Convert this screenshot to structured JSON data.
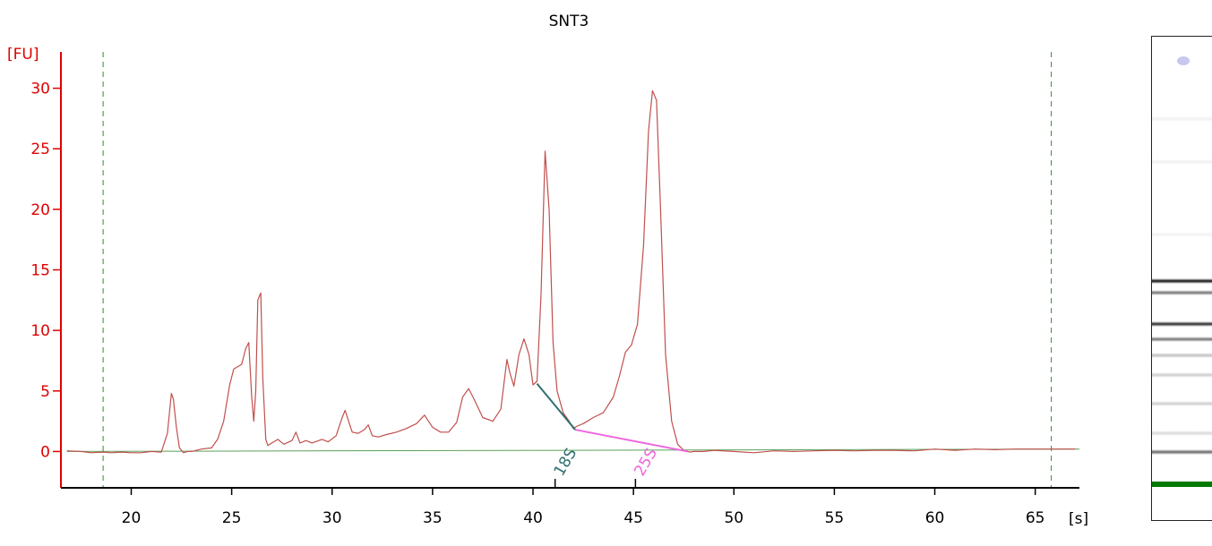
{
  "chart_data": {
    "type": "line",
    "title": "SNT3",
    "ylabel": "[FU]",
    "xlabel": "[s]",
    "xlim": [
      16.5,
      67.2
    ],
    "ylim": [
      -3.0,
      33.0
    ],
    "xticks": [
      20,
      25,
      30,
      35,
      40,
      45,
      50,
      55,
      60,
      65
    ],
    "yticks": [
      0,
      5,
      10,
      15,
      20,
      25,
      30
    ],
    "grid": false,
    "colors": {
      "trace": "#c0504d",
      "baseline": "#5aa05a",
      "axis_y": "#e00000",
      "marker_lines": "#2e8b2e",
      "peak_18S": "#2f6f6f",
      "peak_25S": "#ee66dd",
      "gel_marker": "#007a00"
    },
    "marker_lines_x": [
      18.6,
      65.8
    ],
    "series": [
      {
        "x": [
          16.8,
          17.5,
          18.0,
          18.6,
          19.0,
          19.5,
          20.0,
          20.5,
          21.0,
          21.5,
          21.8,
          22.0,
          22.1,
          22.25,
          22.4,
          22.6,
          22.8,
          23.0,
          23.5,
          24.0,
          24.3,
          24.6,
          24.9,
          25.1,
          25.3,
          25.5,
          25.7,
          25.85,
          26.0,
          26.1,
          26.2,
          26.3,
          26.45,
          26.55,
          26.7,
          26.8,
          27.0,
          27.3,
          27.6,
          28.0,
          28.2,
          28.4,
          28.7,
          29.0,
          29.5,
          29.8,
          30.2,
          30.5,
          30.65,
          30.8,
          31.0,
          31.3,
          31.6,
          31.8,
          32.0,
          32.3,
          32.7,
          33.2,
          33.7,
          34.2,
          34.6,
          35.0,
          35.4,
          35.8,
          36.2,
          36.5,
          36.8,
          37.1,
          37.5,
          38.0,
          38.4,
          38.7,
          38.85,
          39.05,
          39.3,
          39.55,
          39.8,
          40.0,
          40.2,
          40.4,
          40.6,
          40.8,
          41.0,
          41.2,
          41.5,
          41.8,
          42.0,
          42.2,
          42.5,
          43.0,
          43.5,
          44.0,
          44.3,
          44.6,
          44.9,
          45.2,
          45.5,
          45.75,
          45.95,
          46.15,
          46.35,
          46.6,
          46.9,
          47.2,
          47.5,
          47.8,
          48.0,
          48.5,
          49.0,
          50.0,
          51.0,
          52.0,
          53.0,
          54.0,
          55.0,
          56.0,
          57.0,
          58.0,
          59.0,
          60.0,
          61.0,
          62.0,
          63.0,
          64.0,
          65.0,
          66.0,
          67.0
        ],
        "values": [
          0.05,
          0.0,
          -0.1,
          -0.05,
          -0.1,
          -0.05,
          -0.1,
          -0.1,
          0.0,
          -0.05,
          1.5,
          4.8,
          4.3,
          2.0,
          0.3,
          -0.1,
          0.0,
          0.0,
          0.2,
          0.3,
          1.0,
          2.5,
          5.5,
          6.8,
          7.0,
          7.2,
          8.5,
          9.0,
          4.5,
          2.5,
          5.0,
          12.5,
          13.1,
          6.0,
          1.0,
          0.5,
          0.7,
          1.0,
          0.6,
          0.9,
          1.6,
          0.7,
          0.9,
          0.7,
          1.0,
          0.8,
          1.3,
          2.8,
          3.4,
          2.6,
          1.6,
          1.5,
          1.8,
          2.2,
          1.3,
          1.2,
          1.4,
          1.6,
          1.9,
          2.3,
          3.0,
          2.0,
          1.6,
          1.6,
          2.4,
          4.5,
          5.2,
          4.2,
          2.8,
          2.5,
          3.5,
          7.6,
          6.5,
          5.4,
          8.0,
          9.3,
          8.0,
          5.5,
          5.8,
          13.0,
          24.8,
          20.0,
          9.0,
          5.0,
          3.2,
          2.5,
          1.9,
          2.1,
          2.3,
          2.8,
          3.2,
          4.5,
          6.2,
          8.2,
          8.8,
          10.5,
          17.0,
          26.5,
          29.8,
          29.0,
          20.0,
          8.0,
          2.5,
          0.6,
          0.1,
          -0.05,
          0.0,
          0.0,
          0.1,
          0.0,
          -0.1,
          0.05,
          0.0,
          0.05,
          0.1,
          0.05,
          0.1,
          0.1,
          0.05,
          0.2,
          0.1,
          0.2,
          0.15,
          0.2,
          0.2,
          0.2,
          0.2
        ]
      }
    ],
    "baseline": {
      "x": [
        16.8,
        67.2
      ],
      "y": [
        0.0,
        0.2
      ]
    },
    "peak_markers": [
      {
        "label": "18S",
        "x_tick": 41.1,
        "line": {
          "x": [
            40.2,
            42.1
          ],
          "y": [
            5.6,
            1.8
          ]
        }
      },
      {
        "label": "25S",
        "x_tick": 45.1,
        "line": {
          "x": [
            42.1,
            47.7
          ],
          "y": [
            1.8,
            0.0
          ]
        }
      }
    ]
  },
  "gel": {
    "background": "#ffffff",
    "bands": [
      {
        "pos": 0.05,
        "shade": 0.12,
        "color": "#c8c8ee"
      },
      {
        "pos": 0.17,
        "shade": 0.06
      },
      {
        "pos": 0.26,
        "shade": 0.06
      },
      {
        "pos": 0.41,
        "shade": 0.05
      },
      {
        "pos": 0.505,
        "shade": 0.95
      },
      {
        "pos": 0.53,
        "shade": 0.55
      },
      {
        "pos": 0.595,
        "shade": 0.85
      },
      {
        "pos": 0.625,
        "shade": 0.55
      },
      {
        "pos": 0.66,
        "shade": 0.25
      },
      {
        "pos": 0.7,
        "shade": 0.2
      },
      {
        "pos": 0.76,
        "shade": 0.2
      },
      {
        "pos": 0.82,
        "shade": 0.15
      },
      {
        "pos": 0.86,
        "shade": 0.6
      },
      {
        "pos": 0.925,
        "shade": 1.0,
        "color": "#007a00"
      }
    ]
  }
}
